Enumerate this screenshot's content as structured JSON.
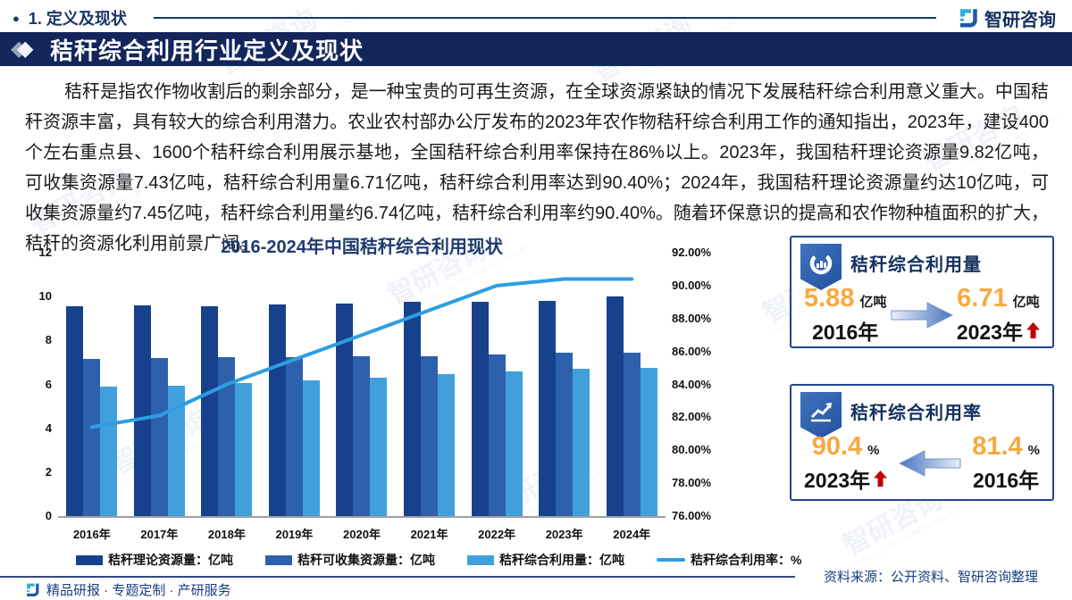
{
  "page": {
    "section_label": "1. 定义及现状",
    "brand": "智研咨询",
    "banner_title": "秸秆综合利用行业定义及现状",
    "paragraph": "秸秆是指农作物收割后的剩余部分，是一种宝贵的可再生资源，在全球资源紧缺的情况下发展秸秆综合利用意义重大。中国秸秆资源丰富，具有较大的综合利用潜力。农业农村部办公厅发布的2023年农作物秸秆综合利用工作的通知指出，2023年，建设400个左右重点县、1600个秸秆综合利用展示基地，全国秸秆综合利用率保持在86%以上。2023年，我国秸秆理论资源量9.82亿吨，可收集资源量7.43亿吨，秸秆综合利用量6.71亿吨，秸秆综合利用率达到90.40%；2024年，我国秸秆理论资源量约达10亿吨，可收集资源量约7.45亿吨，秸秆综合利用量约6.74亿吨，秸秆综合利用率约90.40%。随着环保意识的提高和农作物种植面积的扩大，秸秆的资源化利用前景广阔。",
    "source_note": "资料来源：公开资料、智研咨询整理",
    "footer_text": "精品研报 · 专题定制 · 产研服务",
    "watermark_text": "智研咨询",
    "watermark_subtext": "INTELLIGENCE RESEARCH GROUP"
  },
  "cards": [
    {
      "title": "秸秆综合利用量",
      "left": {
        "value": "5.88",
        "unit": "亿吨",
        "year": "2016年"
      },
      "right": {
        "value": "6.71",
        "unit": "亿吨",
        "year": "2023年"
      },
      "arrow_direction": "right",
      "trend_marker_on": "right"
    },
    {
      "title": "秸秆综合利用率",
      "left": {
        "value": "90.4",
        "unit": "%",
        "year": "2023年"
      },
      "right": {
        "value": "81.4",
        "unit": "%",
        "year": "2016年"
      },
      "arrow_direction": "left",
      "trend_marker_on": "left"
    }
  ],
  "chart_data": {
    "type": "bar",
    "title": "2016-2024年中国秸秆综合利用现状",
    "categories": [
      "2016年",
      "2017年",
      "2018年",
      "2019年",
      "2020年",
      "2021年",
      "2022年",
      "2023年",
      "2024年"
    ],
    "series": [
      {
        "name": "秸秆理论资源量：亿吨",
        "type": "bar",
        "color": "#17418c",
        "values": [
          9.55,
          9.6,
          9.55,
          9.65,
          9.7,
          9.75,
          9.75,
          9.82,
          10.0
        ]
      },
      {
        "name": "秸秆可收集资源量：亿吨",
        "type": "bar",
        "color": "#2e61ad",
        "values": [
          7.15,
          7.2,
          7.25,
          7.25,
          7.3,
          7.3,
          7.35,
          7.43,
          7.45
        ]
      },
      {
        "name": "秸秆综合利用量：亿吨",
        "type": "bar",
        "color": "#41a0dc",
        "values": [
          5.88,
          5.95,
          6.05,
          6.2,
          6.3,
          6.45,
          6.6,
          6.71,
          6.74
        ]
      },
      {
        "name": "秸秆综合利用率：%",
        "type": "line",
        "axis": "right",
        "color": "#2f9de2",
        "values": [
          81.4,
          82.1,
          84.0,
          85.5,
          87.0,
          88.5,
          90.0,
          90.4,
          90.4
        ]
      }
    ],
    "left_axis": {
      "min": 0,
      "max": 12,
      "step": 2
    },
    "right_axis": {
      "min": 76,
      "max": 92,
      "step": 2,
      "tick_labels": [
        "76.00%",
        "78.00%",
        "80.00%",
        "82.00%",
        "84.00%",
        "86.00%",
        "88.00%",
        "90.00%",
        "92.00%"
      ]
    },
    "legend_position": "bottom",
    "grid": false
  },
  "colors": {
    "banner_navy": "#13265b",
    "text_navy": "#1b3668",
    "accent_orange": "#f8a93e",
    "trend_red": "#c00000",
    "bar_dark": "#17418c",
    "bar_medium": "#2e61ad",
    "bar_light": "#41a0dc",
    "line_blue": "#2f9de2"
  }
}
